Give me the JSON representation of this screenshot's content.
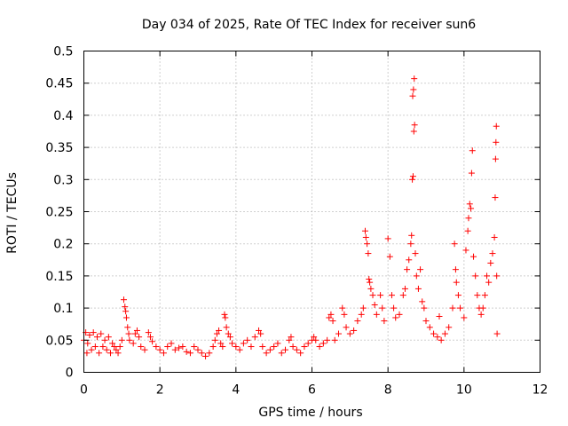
{
  "chart_data": {
    "type": "scatter",
    "title": "Day 034 of 2025, Rate Of TEC Index for receiver sun6",
    "xlabel": "GPS time / hours",
    "ylabel": "ROTI / TECUs",
    "xlim": [
      0,
      12
    ],
    "ylim": [
      0,
      0.5
    ],
    "xticks": [
      0,
      2,
      4,
      6,
      8,
      10,
      12
    ],
    "yticks": [
      0,
      0.05,
      0.1,
      0.15,
      0.2,
      0.25,
      0.3,
      0.35,
      0.4,
      0.45,
      0.5
    ],
    "xtick_labels": [
      "0",
      "2",
      "4",
      "6",
      "8",
      "10",
      "12"
    ],
    "ytick_labels": [
      "0",
      "0.05",
      "0.1",
      "0.15",
      "0.2",
      "0.25",
      "0.3",
      "0.35",
      "0.4",
      "0.45",
      "0.5"
    ],
    "grid": true,
    "marker": "+",
    "color": "#ff0000",
    "series": [
      {
        "name": "ROTI",
        "points": [
          [
            0.0,
            0.05
          ],
          [
            0.05,
            0.062
          ],
          [
            0.08,
            0.03
          ],
          [
            0.1,
            0.045
          ],
          [
            0.15,
            0.058
          ],
          [
            0.2,
            0.035
          ],
          [
            0.25,
            0.062
          ],
          [
            0.3,
            0.04
          ],
          [
            0.35,
            0.055
          ],
          [
            0.4,
            0.03
          ],
          [
            0.45,
            0.06
          ],
          [
            0.5,
            0.04
          ],
          [
            0.55,
            0.05
          ],
          [
            0.6,
            0.035
          ],
          [
            0.65,
            0.055
          ],
          [
            0.7,
            0.03
          ],
          [
            0.75,
            0.045
          ],
          [
            0.8,
            0.04
          ],
          [
            0.85,
            0.035
          ],
          [
            0.9,
            0.03
          ],
          [
            0.95,
            0.04
          ],
          [
            1.0,
            0.05
          ],
          [
            1.05,
            0.113
          ],
          [
            1.08,
            0.102
          ],
          [
            1.1,
            0.095
          ],
          [
            1.12,
            0.085
          ],
          [
            1.15,
            0.07
          ],
          [
            1.18,
            0.06
          ],
          [
            1.2,
            0.05
          ],
          [
            1.3,
            0.045
          ],
          [
            1.35,
            0.06
          ],
          [
            1.4,
            0.065
          ],
          [
            1.45,
            0.055
          ],
          [
            1.5,
            0.04
          ],
          [
            1.6,
            0.035
          ],
          [
            1.7,
            0.062
          ],
          [
            1.75,
            0.055
          ],
          [
            1.8,
            0.048
          ],
          [
            1.9,
            0.04
          ],
          [
            2.0,
            0.035
          ],
          [
            2.1,
            0.03
          ],
          [
            2.2,
            0.04
          ],
          [
            2.3,
            0.045
          ],
          [
            2.4,
            0.035
          ],
          [
            2.5,
            0.038
          ],
          [
            2.6,
            0.04
          ],
          [
            2.7,
            0.032
          ],
          [
            2.8,
            0.03
          ],
          [
            2.9,
            0.04
          ],
          [
            3.0,
            0.035
          ],
          [
            3.1,
            0.03
          ],
          [
            3.2,
            0.025
          ],
          [
            3.3,
            0.03
          ],
          [
            3.4,
            0.04
          ],
          [
            3.45,
            0.05
          ],
          [
            3.5,
            0.06
          ],
          [
            3.55,
            0.065
          ],
          [
            3.6,
            0.045
          ],
          [
            3.65,
            0.04
          ],
          [
            3.7,
            0.09
          ],
          [
            3.72,
            0.085
          ],
          [
            3.75,
            0.07
          ],
          [
            3.8,
            0.06
          ],
          [
            3.85,
            0.055
          ],
          [
            3.9,
            0.045
          ],
          [
            4.0,
            0.04
          ],
          [
            4.1,
            0.035
          ],
          [
            4.2,
            0.045
          ],
          [
            4.3,
            0.05
          ],
          [
            4.4,
            0.04
          ],
          [
            4.5,
            0.055
          ],
          [
            4.6,
            0.065
          ],
          [
            4.65,
            0.06
          ],
          [
            4.7,
            0.04
          ],
          [
            4.8,
            0.03
          ],
          [
            4.9,
            0.035
          ],
          [
            5.0,
            0.04
          ],
          [
            5.1,
            0.045
          ],
          [
            5.2,
            0.03
          ],
          [
            5.3,
            0.035
          ],
          [
            5.4,
            0.05
          ],
          [
            5.45,
            0.055
          ],
          [
            5.5,
            0.04
          ],
          [
            5.6,
            0.035
          ],
          [
            5.7,
            0.03
          ],
          [
            5.8,
            0.04
          ],
          [
            5.9,
            0.045
          ],
          [
            6.0,
            0.05
          ],
          [
            6.05,
            0.055
          ],
          [
            6.1,
            0.05
          ],
          [
            6.2,
            0.04
          ],
          [
            6.3,
            0.045
          ],
          [
            6.4,
            0.05
          ],
          [
            6.45,
            0.085
          ],
          [
            6.5,
            0.09
          ],
          [
            6.55,
            0.08
          ],
          [
            6.6,
            0.05
          ],
          [
            6.7,
            0.06
          ],
          [
            6.8,
            0.1
          ],
          [
            6.85,
            0.09
          ],
          [
            6.9,
            0.07
          ],
          [
            7.0,
            0.06
          ],
          [
            7.1,
            0.065
          ],
          [
            7.2,
            0.08
          ],
          [
            7.3,
            0.09
          ],
          [
            7.35,
            0.1
          ],
          [
            7.4,
            0.22
          ],
          [
            7.42,
            0.21
          ],
          [
            7.45,
            0.2
          ],
          [
            7.48,
            0.185
          ],
          [
            7.5,
            0.145
          ],
          [
            7.52,
            0.14
          ],
          [
            7.55,
            0.13
          ],
          [
            7.6,
            0.12
          ],
          [
            7.65,
            0.105
          ],
          [
            7.7,
            0.09
          ],
          [
            7.8,
            0.12
          ],
          [
            7.85,
            0.1
          ],
          [
            7.9,
            0.08
          ],
          [
            8.0,
            0.208
          ],
          [
            8.05,
            0.18
          ],
          [
            8.1,
            0.12
          ],
          [
            8.15,
            0.1
          ],
          [
            8.2,
            0.085
          ],
          [
            8.3,
            0.09
          ],
          [
            8.4,
            0.12
          ],
          [
            8.45,
            0.13
          ],
          [
            8.5,
            0.16
          ],
          [
            8.55,
            0.175
          ],
          [
            8.6,
            0.2
          ],
          [
            8.62,
            0.213
          ],
          [
            8.64,
            0.3
          ],
          [
            8.66,
            0.305
          ],
          [
            8.68,
            0.375
          ],
          [
            8.7,
            0.385
          ],
          [
            8.65,
            0.43
          ],
          [
            8.67,
            0.44
          ],
          [
            8.69,
            0.457
          ],
          [
            8.72,
            0.185
          ],
          [
            8.75,
            0.15
          ],
          [
            8.8,
            0.13
          ],
          [
            8.85,
            0.16
          ],
          [
            8.9,
            0.11
          ],
          [
            8.95,
            0.1
          ],
          [
            9.0,
            0.08
          ],
          [
            9.1,
            0.07
          ],
          [
            9.2,
            0.06
          ],
          [
            9.3,
            0.055
          ],
          [
            9.35,
            0.087
          ],
          [
            9.4,
            0.05
          ],
          [
            9.5,
            0.06
          ],
          [
            9.6,
            0.07
          ],
          [
            9.7,
            0.1
          ],
          [
            9.75,
            0.2
          ],
          [
            9.78,
            0.16
          ],
          [
            9.8,
            0.14
          ],
          [
            9.85,
            0.12
          ],
          [
            9.9,
            0.1
          ],
          [
            10.0,
            0.085
          ],
          [
            10.05,
            0.19
          ],
          [
            10.1,
            0.22
          ],
          [
            10.12,
            0.24
          ],
          [
            10.15,
            0.262
          ],
          [
            10.18,
            0.255
          ],
          [
            10.2,
            0.31
          ],
          [
            10.22,
            0.345
          ],
          [
            10.25,
            0.18
          ],
          [
            10.3,
            0.15
          ],
          [
            10.35,
            0.12
          ],
          [
            10.4,
            0.1
          ],
          [
            10.45,
            0.09
          ],
          [
            10.5,
            0.1
          ],
          [
            10.55,
            0.12
          ],
          [
            10.6,
            0.15
          ],
          [
            10.65,
            0.14
          ],
          [
            10.7,
            0.17
          ],
          [
            10.75,
            0.185
          ],
          [
            10.8,
            0.21
          ],
          [
            10.82,
            0.272
          ],
          [
            10.83,
            0.332
          ],
          [
            10.84,
            0.358
          ],
          [
            10.85,
            0.383
          ],
          [
            10.86,
            0.15
          ],
          [
            10.87,
            0.06
          ]
        ]
      }
    ]
  }
}
